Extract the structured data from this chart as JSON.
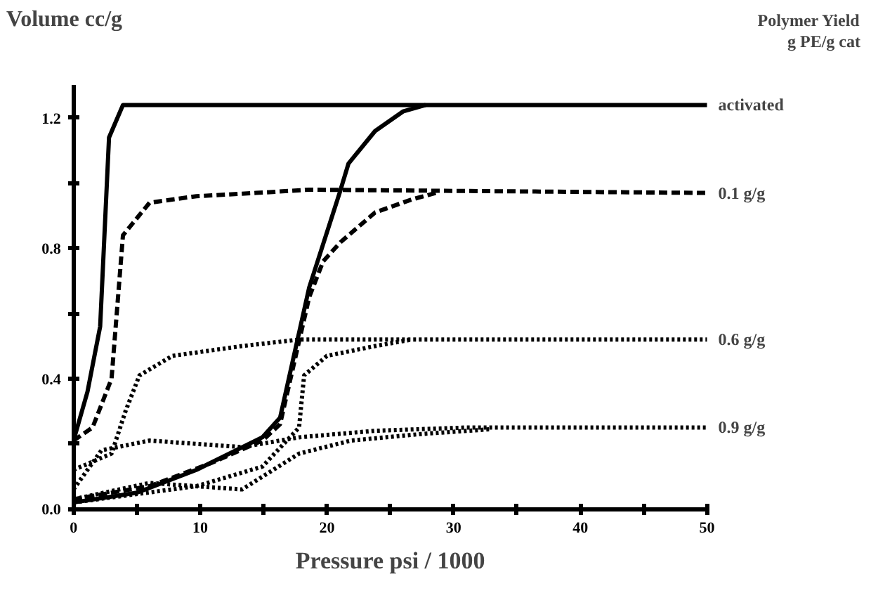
{
  "chart_data": {
    "type": "line",
    "xlabel": "Pressure psi / 1000",
    "ylabel": "Volume cc/g",
    "xlim": [
      0,
      50
    ],
    "ylim": [
      0,
      1.3
    ],
    "xticks": [
      0,
      {
        "value": 5,
        "label": null
      },
      10,
      {
        "value": 15,
        "label": null
      },
      20,
      {
        "value": 25,
        "label": null
      },
      30,
      {
        "value": 35,
        "label": null
      },
      40,
      {
        "value": 45,
        "label": null
      },
      50
    ],
    "yticks": [
      {
        "value": 0,
        "label": "0.0"
      },
      {
        "value": 0.2,
        "label": null
      },
      0.4,
      {
        "value": 0.6,
        "label": null
      },
      0.8,
      {
        "value": 1.0,
        "label": null
      },
      1.2
    ],
    "grid": false,
    "series": [
      {
        "name": "activated",
        "color": "#000000",
        "line_style": "solid",
        "x": [
          0,
          1.1,
          2.1,
          2.8,
          3.9,
          50
        ],
        "values": [
          0.21,
          0.36,
          0.56,
          1.14,
          1.24,
          1.24
        ]
      },
      {
        "color": "#000000",
        "line_style": "solid",
        "x": [
          0,
          5,
          9.7,
          14.9,
          16.3,
          18.6,
          21,
          21.7,
          23.8,
          26,
          27.8
        ],
        "values": [
          0.02,
          0.05,
          0.12,
          0.22,
          0.28,
          0.68,
          0.97,
          1.06,
          1.16,
          1.22,
          1.24
        ]
      },
      {
        "name": "0.1 g/g",
        "color": "#000000",
        "line_style": "dashed",
        "x": [
          0,
          1.5,
          3,
          3.9,
          6,
          9.7,
          14.4,
          18.6,
          50
        ],
        "values": [
          0.21,
          0.25,
          0.4,
          0.84,
          0.94,
          0.96,
          0.97,
          0.98,
          0.97
        ]
      },
      {
        "color": "#000000",
        "line_style": "dashed",
        "x": [
          0,
          6,
          10.8,
          14.9,
          16.3,
          18.6,
          19.7,
          21.1,
          23.8,
          26.7,
          28.6
        ],
        "values": [
          0.03,
          0.07,
          0.14,
          0.21,
          0.26,
          0.65,
          0.76,
          0.82,
          0.91,
          0.95,
          0.97
        ]
      },
      {
        "name": "0.6 g/g",
        "color": "#000000",
        "line_style": "dotted",
        "x": [
          0,
          3,
          4.1,
          5.2,
          7.8,
          13.3,
          17.8,
          50
        ],
        "values": [
          0.12,
          0.17,
          0.3,
          0.41,
          0.47,
          0.5,
          0.52,
          0.52
        ]
      },
      {
        "color": "#000000",
        "line_style": "dotted",
        "x": [
          0,
          9.7,
          14.9,
          17.8,
          18.2,
          20,
          23.8,
          26.7
        ],
        "values": [
          0.02,
          0.07,
          0.13,
          0.25,
          0.41,
          0.47,
          0.5,
          0.52
        ]
      },
      {
        "name": "0.9 g/g",
        "color": "#000000",
        "line_style": "dotted",
        "x": [
          0,
          2.2,
          6,
          13.3,
          17.8,
          23.8,
          31,
          50
        ],
        "values": [
          0.06,
          0.18,
          0.21,
          0.19,
          0.22,
          0.24,
          0.25,
          0.25
        ]
      },
      {
        "color": "#000000",
        "line_style": "dotted",
        "x": [
          0,
          6,
          13.3,
          17.8,
          21.9,
          27.4,
          33
        ],
        "values": [
          0.03,
          0.08,
          0.06,
          0.17,
          0.21,
          0.23,
          0.245
        ]
      }
    ],
    "annotations": [
      "Polymer Yield",
      "g PE/g cat"
    ]
  }
}
